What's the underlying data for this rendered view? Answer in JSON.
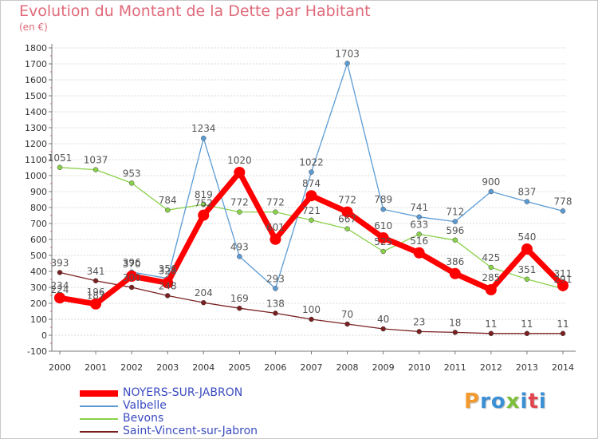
{
  "colors": {
    "title": "#e06a7a",
    "axis": "#777777",
    "grid": "#d8d8d8",
    "label": "#555555",
    "legend_text": "#3b4cc0"
  },
  "logo": {
    "text": "Proxiti",
    "letter_colors": [
      "#f29a2e",
      "#3b8fd4",
      "#3b8fd4",
      "#7cbf3a",
      "#3b8fd4",
      "#e0454d",
      "#3b8fd4"
    ]
  },
  "chart_data": {
    "type": "line",
    "title": "Evolution du Montant de la Dette par Habitant",
    "subtitle": "(en €)",
    "xlabel": "",
    "ylabel": "",
    "x": [
      "2000",
      "2001",
      "2002",
      "2003",
      "2004",
      "2005",
      "2006",
      "2007",
      "2008",
      "2009",
      "2010",
      "2011",
      "2012",
      "2013",
      "2014"
    ],
    "ylim": [
      -100,
      1800
    ],
    "yticks": [
      -100,
      0,
      100,
      200,
      300,
      400,
      500,
      600,
      700,
      800,
      900,
      1000,
      1100,
      1200,
      1300,
      1400,
      1500,
      1600,
      1700,
      1800
    ],
    "grid": "horizontal",
    "legend_position": "bottom-left",
    "series": [
      {
        "name": "NOYERS-SUR-JABRON",
        "color": "#ff0000",
        "values": [
          234,
          196,
          370,
          328,
          752,
          1020,
          601,
          874,
          772,
          610,
          516,
          386,
          285,
          540,
          311
        ]
      },
      {
        "name": "Valbelle",
        "color": "#5b9bd5",
        "values": [
          224,
          187,
          396,
          356,
          1234,
          493,
          293,
          1022,
          1703,
          789,
          741,
          712,
          900,
          837,
          778
        ]
      },
      {
        "name": "Bevons",
        "color": "#8ad14a",
        "values": [
          1051,
          1037,
          953,
          784,
          819,
          772,
          772,
          721,
          667,
          525,
          633,
          596,
          425,
          351,
          291
        ]
      },
      {
        "name": "Saint-Vincent-sur-Jabron",
        "color": "#7a1f1f",
        "values": [
          393,
          341,
          300,
          248,
          204,
          169,
          138,
          100,
          70,
          40,
          23,
          18,
          11,
          11,
          11
        ]
      }
    ]
  }
}
